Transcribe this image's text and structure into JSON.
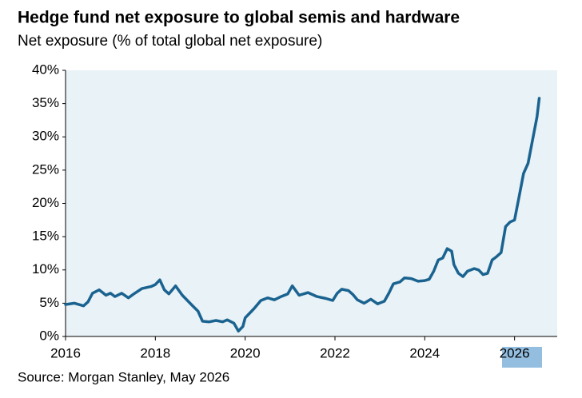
{
  "chart_data": {
    "type": "line",
    "title": "Hedge fund net exposure to global semis and hardware",
    "subtitle": "Net exposure (% of total global net exposure)",
    "source": "Source: Morgan Stanley, May 2026",
    "x": [
      2016.0,
      2016.2,
      2016.4,
      2016.5,
      2016.6,
      2016.75,
      2016.9,
      2017.0,
      2017.1,
      2017.25,
      2017.4,
      2017.5,
      2017.7,
      2017.9,
      2018.0,
      2018.1,
      2018.2,
      2018.3,
      2018.45,
      2018.6,
      2018.8,
      2018.95,
      2019.05,
      2019.2,
      2019.35,
      2019.5,
      2019.6,
      2019.75,
      2019.85,
      2019.95,
      2020.0,
      2020.1,
      2020.2,
      2020.35,
      2020.5,
      2020.65,
      2020.8,
      2020.95,
      2021.05,
      2021.2,
      2021.4,
      2021.6,
      2021.8,
      2021.95,
      2022.05,
      2022.15,
      2022.3,
      2022.4,
      2022.5,
      2022.65,
      2022.8,
      2022.95,
      2023.1,
      2023.2,
      2023.3,
      2023.45,
      2023.55,
      2023.7,
      2023.85,
      2024.0,
      2024.1,
      2024.2,
      2024.3,
      2024.4,
      2024.5,
      2024.6,
      2024.65,
      2024.75,
      2024.85,
      2024.95,
      2025.1,
      2025.2,
      2025.3,
      2025.4,
      2025.5,
      2025.6,
      2025.7,
      2025.8,
      2025.9,
      2026.0,
      2026.1,
      2026.2,
      2026.3,
      2026.4,
      2026.5,
      2026.55
    ],
    "series": [
      {
        "name": "Net exposure",
        "color": "#1a6390",
        "values": [
          4.8,
          5.0,
          4.6,
          5.2,
          6.5,
          7.0,
          6.2,
          6.5,
          6.0,
          6.5,
          5.8,
          6.3,
          7.2,
          7.5,
          7.8,
          8.5,
          7.0,
          6.4,
          7.6,
          6.2,
          4.8,
          3.8,
          2.3,
          2.2,
          2.4,
          2.2,
          2.5,
          2.0,
          0.8,
          1.5,
          2.8,
          3.5,
          4.2,
          5.4,
          5.8,
          5.5,
          6.0,
          6.4,
          7.6,
          6.2,
          6.6,
          6.0,
          5.7,
          5.4,
          6.5,
          7.1,
          6.9,
          6.3,
          5.5,
          5.0,
          5.6,
          4.9,
          5.3,
          6.5,
          7.9,
          8.2,
          8.8,
          8.7,
          8.3,
          8.4,
          8.6,
          9.8,
          11.5,
          11.8,
          13.2,
          12.8,
          10.8,
          9.5,
          9.0,
          9.8,
          10.2,
          10.0,
          9.3,
          9.5,
          11.5,
          12.0,
          12.6,
          16.5,
          17.2,
          17.5,
          21.0,
          24.5,
          26.0,
          29.5,
          33.0,
          35.8
        ]
      }
    ],
    "xlim": [
      2016,
      2026.95
    ],
    "xticks": [
      2016,
      2018,
      2020,
      2022,
      2024,
      2026
    ],
    "ylim": [
      0,
      40
    ],
    "yticks": [
      {
        "value": 0,
        "label": "0%"
      },
      {
        "value": 5,
        "label": "5%"
      },
      {
        "value": 10,
        "label": "10%"
      },
      {
        "value": 15,
        "label": "15%"
      },
      {
        "value": 20,
        "label": "20%"
      },
      {
        "value": 25,
        "label": "25%"
      },
      {
        "value": 30,
        "label": "30%"
      },
      {
        "value": 35,
        "label": "35%"
      },
      {
        "value": 40,
        "label": "40%"
      }
    ]
  }
}
